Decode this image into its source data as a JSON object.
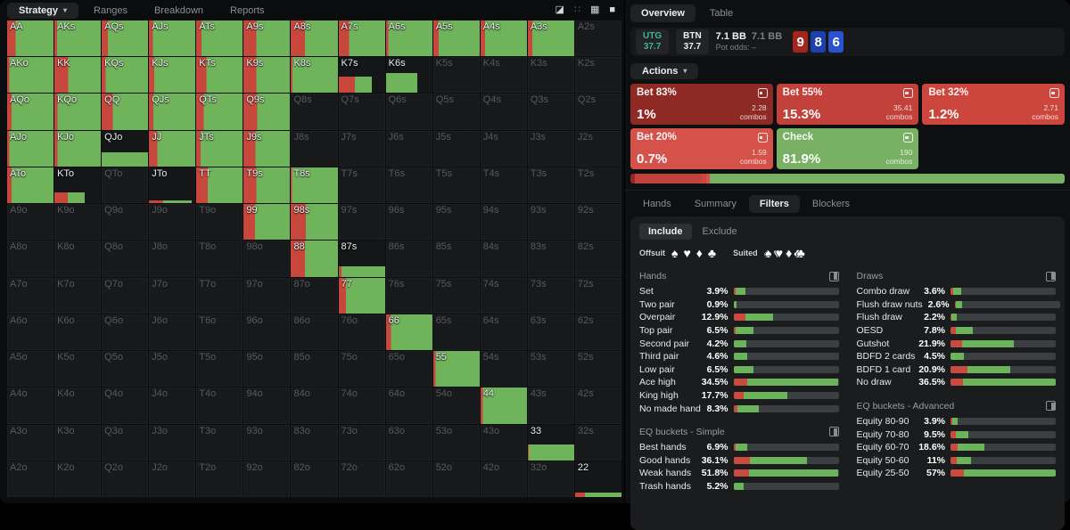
{
  "colors": {
    "grid_green": "#6fb35b",
    "grid_red": "#c8473d",
    "bar_red": "#c94b40",
    "bar_green": "#6cb45c",
    "bar_track": "#3b3f42"
  },
  "menubar": {
    "items": [
      {
        "label": "Strategy",
        "active": true,
        "caret": "▾"
      },
      {
        "label": "Ranges",
        "active": false
      },
      {
        "label": "Breakdown",
        "active": false
      },
      {
        "label": "Reports",
        "active": false
      }
    ],
    "icons": [
      {
        "glyph": "◪",
        "name": "contrast-square-icon",
        "dim": false
      },
      {
        "glyph": "∷",
        "name": "dots-grid-icon",
        "dim": true
      },
      {
        "glyph": "▦",
        "name": "grid-view-icon",
        "dim": false
      },
      {
        "glyph": "■",
        "name": "solid-square-icon",
        "dim": false
      }
    ]
  },
  "header": {
    "tabs": [
      {
        "label": "Overview",
        "active": true
      },
      {
        "label": "Table",
        "active": false
      }
    ]
  },
  "info": {
    "utg": {
      "label": "UTG",
      "value": "37.7"
    },
    "btn": {
      "label": "BTN",
      "value": "37.7"
    },
    "pot_main": "7.1 BB",
    "pot_alt": "7.1 BB",
    "pot_odds_label": "Pot odds:",
    "pot_odds_value": "–",
    "board": [
      {
        "rank": "9",
        "color": "#a3251c",
        "name": "board-card-9"
      },
      {
        "rank": "8",
        "color": "#1e3fae",
        "name": "board-card-8"
      },
      {
        "rank": "6",
        "color": "#2a52cf",
        "name": "board-card-6"
      }
    ]
  },
  "actions": {
    "label": "Actions",
    "caret": "▾",
    "combos_word": "combos",
    "buttons": [
      {
        "label": "Bet 83%",
        "pct": "1%",
        "combos": "2.28",
        "color": "#8e2a23"
      },
      {
        "label": "Bet 55%",
        "pct": "15.3%",
        "combos": "35.41",
        "color": "#c2413a"
      },
      {
        "label": "Bet 32%",
        "pct": "1.2%",
        "combos": "2.71",
        "color": "#cd463d"
      },
      {
        "label": "Bet 20%",
        "pct": "0.7%",
        "combos": "1.59",
        "color": "#d5524a"
      },
      {
        "label": "Check",
        "pct": "81.9%",
        "combos": "190",
        "color": "#78b163"
      }
    ],
    "strategy_bar": [
      {
        "pct": 1,
        "color": "#8e2a23"
      },
      {
        "pct": 15.3,
        "color": "#c2413a"
      },
      {
        "pct": 1.2,
        "color": "#cd463d"
      },
      {
        "pct": 0.7,
        "color": "#d5524a"
      },
      {
        "pct": 81.9,
        "color": "#78b163"
      }
    ]
  },
  "sub_tabs": [
    {
      "label": "Hands",
      "active": false
    },
    {
      "label": "Summary",
      "active": false
    },
    {
      "label": "Filters",
      "active": true
    },
    {
      "label": "Blockers",
      "active": false
    }
  ],
  "filters": {
    "include": "Include",
    "exclude": "Exclude",
    "offsuit_label": "Offsuit",
    "suited_label": "Suited",
    "suits": [
      {
        "glyph": "♠",
        "name": "spade"
      },
      {
        "glyph": "♥",
        "name": "heart"
      },
      {
        "glyph": "♦",
        "name": "diamond"
      },
      {
        "glyph": "♣",
        "name": "club"
      }
    ]
  },
  "stats": {
    "left": [
      {
        "title": "Hands",
        "max": 34.5,
        "rows": [
          {
            "label": "Set",
            "value": "3.9%",
            "v": 3.9,
            "rf": 0.18
          },
          {
            "label": "Two pair",
            "value": "0.9%",
            "v": 0.9,
            "rf": 0
          },
          {
            "label": "Overpair",
            "value": "12.9%",
            "v": 12.9,
            "rf": 0.3
          },
          {
            "label": "Top pair",
            "value": "6.5%",
            "v": 6.5,
            "rf": 0.12
          },
          {
            "label": "Second pair",
            "value": "4.2%",
            "v": 4.2,
            "rf": 0.04
          },
          {
            "label": "Third pair",
            "value": "4.6%",
            "v": 4.6,
            "rf": 0
          },
          {
            "label": "Low pair",
            "value": "6.5%",
            "v": 6.5,
            "rf": 0
          },
          {
            "label": "Ace high",
            "value": "34.5%",
            "v": 34.5,
            "rf": 0.13
          },
          {
            "label": "King high",
            "value": "17.7%",
            "v": 17.7,
            "rf": 0.19
          },
          {
            "label": "No made hand",
            "value": "8.3%",
            "v": 8.3,
            "rf": 0.15
          }
        ]
      },
      {
        "title": "EQ buckets - Simple",
        "max": 51.8,
        "rows": [
          {
            "label": "Best hands",
            "value": "6.9%",
            "v": 6.9,
            "rf": 0.15
          },
          {
            "label": "Good hands",
            "value": "36.1%",
            "v": 36.1,
            "rf": 0.23
          },
          {
            "label": "Weak hands",
            "value": "51.8%",
            "v": 51.8,
            "rf": 0.15
          },
          {
            "label": "Trash hands",
            "value": "5.2%",
            "v": 5.2,
            "rf": 0
          }
        ]
      }
    ],
    "right": [
      {
        "title": "Draws",
        "max": 36.5,
        "rows": [
          {
            "label": "Combo draw",
            "value": "3.6%",
            "v": 3.6,
            "rf": 0.25
          },
          {
            "label": "Flush draw nuts",
            "value": "2.6%",
            "v": 2.6,
            "rf": 0.12
          },
          {
            "label": "Flush draw",
            "value": "2.2%",
            "v": 2.2,
            "rf": 0.15
          },
          {
            "label": "OESD",
            "value": "7.8%",
            "v": 7.8,
            "rf": 0.22
          },
          {
            "label": "Gutshot",
            "value": "21.9%",
            "v": 21.9,
            "rf": 0.18
          },
          {
            "label": "BDFD 2 cards",
            "value": "4.5%",
            "v": 4.5,
            "rf": 0
          },
          {
            "label": "BDFD 1 card",
            "value": "20.9%",
            "v": 20.9,
            "rf": 0.28
          },
          {
            "label": "No draw",
            "value": "36.5%",
            "v": 36.5,
            "rf": 0.12
          }
        ]
      },
      {
        "title": "EQ buckets - Advanced",
        "max": 57,
        "rows": [
          {
            "label": "Equity 80-90",
            "value": "3.9%",
            "v": 3.9,
            "rf": 0.2
          },
          {
            "label": "Equity 70-80",
            "value": "9.5%",
            "v": 9.5,
            "rf": 0.3
          },
          {
            "label": "Equity 60-70",
            "value": "18.6%",
            "v": 18.6,
            "rf": 0.2
          },
          {
            "label": "Equity 50-60",
            "value": "11%",
            "v": 11,
            "rf": 0.3
          },
          {
            "label": "Equity 25-50",
            "value": "57%",
            "v": 57,
            "rf": 0.13
          }
        ]
      }
    ]
  },
  "grid": {
    "rows": [
      [
        {
          "l": "AA",
          "t": "f",
          "r": 0.18
        },
        {
          "l": "AKs",
          "t": "f",
          "r": 0.06
        },
        {
          "l": "AQs",
          "t": "f",
          "r": 0.13
        },
        {
          "l": "AJs",
          "t": "f",
          "r": 0.09
        },
        {
          "l": "ATs",
          "t": "f",
          "r": 0.12
        },
        {
          "l": "A9s",
          "t": "f",
          "r": 0.28
        },
        {
          "l": "A8s",
          "t": "f",
          "r": 0.3
        },
        {
          "l": "A7s",
          "t": "f",
          "r": 0.22
        },
        {
          "l": "A6s",
          "t": "f",
          "r": 0.05
        },
        {
          "l": "A5s",
          "t": "f",
          "r": 0.12
        },
        {
          "l": "A4s",
          "t": "f",
          "r": 0.1
        },
        {
          "l": "A3s",
          "t": "f",
          "r": 0.1
        },
        {
          "l": "A2s",
          "t": "o"
        }
      ],
      [
        {
          "l": "AKo",
          "t": "f",
          "r": 0.05
        },
        {
          "l": "KK",
          "t": "f",
          "r": 0.3
        },
        {
          "l": "KQs",
          "t": "f",
          "r": 0.09
        },
        {
          "l": "KJs",
          "t": "f",
          "r": 0.12
        },
        {
          "l": "KTs",
          "t": "f",
          "r": 0.22
        },
        {
          "l": "K9s",
          "t": "f",
          "r": 0.28
        },
        {
          "l": "K8s",
          "t": "f",
          "r": 0.04
        },
        {
          "l": "K7s",
          "t": "p",
          "h": 0.45,
          "rw": 0.36,
          "gw": 0.36
        },
        {
          "l": "K6s",
          "t": "p",
          "h": 0.55,
          "rw": 0,
          "gw": 0.67
        },
        {
          "l": "K5s",
          "t": "o"
        },
        {
          "l": "K4s",
          "t": "o"
        },
        {
          "l": "K3s",
          "t": "o"
        },
        {
          "l": "K2s",
          "t": "o"
        }
      ],
      [
        {
          "l": "AQo",
          "t": "f",
          "r": 0.1
        },
        {
          "l": "KQo",
          "t": "f",
          "r": 0.07
        },
        {
          "l": "QQ",
          "t": "f",
          "r": 0.24
        },
        {
          "l": "QJs",
          "t": "f",
          "r": 0.1
        },
        {
          "l": "QTs",
          "t": "f",
          "r": 0.16
        },
        {
          "l": "Q9s",
          "t": "f",
          "r": 0.3
        },
        {
          "l": "Q8s",
          "t": "o"
        },
        {
          "l": "Q7s",
          "t": "o"
        },
        {
          "l": "Q6s",
          "t": "o"
        },
        {
          "l": "Q5s",
          "t": "o"
        },
        {
          "l": "Q4s",
          "t": "o"
        },
        {
          "l": "Q3s",
          "t": "o"
        },
        {
          "l": "Q2s",
          "t": "o"
        }
      ],
      [
        {
          "l": "AJo",
          "t": "f",
          "r": 0.05
        },
        {
          "l": "KJo",
          "t": "f",
          "r": 0.07
        },
        {
          "l": "QJo",
          "t": "p",
          "h": 0.4,
          "rw": 0,
          "gw": 1
        },
        {
          "l": "JJ",
          "t": "f",
          "r": 0.18
        },
        {
          "l": "JTs",
          "t": "f",
          "r": 0.1
        },
        {
          "l": "J9s",
          "t": "f",
          "r": 0.26
        },
        {
          "l": "J8s",
          "t": "o"
        },
        {
          "l": "J7s",
          "t": "o"
        },
        {
          "l": "J6s",
          "t": "o"
        },
        {
          "l": "J5s",
          "t": "o"
        },
        {
          "l": "J4s",
          "t": "o"
        },
        {
          "l": "J3s",
          "t": "o"
        },
        {
          "l": "J2s",
          "t": "o"
        }
      ],
      [
        {
          "l": "ATo",
          "t": "f",
          "r": 0.1
        },
        {
          "l": "KTo",
          "t": "p",
          "h": 0.3,
          "rw": 0.28,
          "gw": 0.38
        },
        {
          "l": "QTo",
          "t": "o"
        },
        {
          "l": "JTo",
          "t": "p",
          "h": 0.09,
          "rw": 0.3,
          "gw": 0.62
        },
        {
          "l": "TT",
          "t": "f",
          "r": 0.25
        },
        {
          "l": "T9s",
          "t": "f",
          "r": 0.28
        },
        {
          "l": "T8s",
          "t": "f",
          "r": 0.03
        },
        {
          "l": "T7s",
          "t": "o"
        },
        {
          "l": "T6s",
          "t": "o"
        },
        {
          "l": "T5s",
          "t": "o"
        },
        {
          "l": "T4s",
          "t": "o"
        },
        {
          "l": "T3s",
          "t": "o"
        },
        {
          "l": "T2s",
          "t": "o"
        }
      ],
      [
        {
          "l": "A9o",
          "t": "o"
        },
        {
          "l": "K9o",
          "t": "o"
        },
        {
          "l": "Q9o",
          "t": "o"
        },
        {
          "l": "J9o",
          "t": "o"
        },
        {
          "l": "T9o",
          "t": "o"
        },
        {
          "l": "99",
          "t": "f",
          "r": 0.25
        },
        {
          "l": "98s",
          "t": "f",
          "r": 0.32
        },
        {
          "l": "97s",
          "t": "o"
        },
        {
          "l": "96s",
          "t": "o"
        },
        {
          "l": "95s",
          "t": "o"
        },
        {
          "l": "94s",
          "t": "o"
        },
        {
          "l": "93s",
          "t": "o"
        },
        {
          "l": "92s",
          "t": "o"
        }
      ],
      [
        {
          "l": "A8o",
          "t": "o"
        },
        {
          "l": "K8o",
          "t": "o"
        },
        {
          "l": "Q8o",
          "t": "o"
        },
        {
          "l": "J8o",
          "t": "o"
        },
        {
          "l": "T8o",
          "t": "o"
        },
        {
          "l": "98o",
          "t": "o"
        },
        {
          "l": "88",
          "t": "f",
          "r": 0.3
        },
        {
          "l": "87s",
          "t": "p",
          "h": 0.28,
          "rw": 0.06,
          "gw": 0.94
        },
        {
          "l": "86s",
          "t": "o"
        },
        {
          "l": "85s",
          "t": "o"
        },
        {
          "l": "84s",
          "t": "o"
        },
        {
          "l": "83s",
          "t": "o"
        },
        {
          "l": "82s",
          "t": "o"
        }
      ],
      [
        {
          "l": "A7o",
          "t": "o"
        },
        {
          "l": "K7o",
          "t": "o"
        },
        {
          "l": "Q7o",
          "t": "o"
        },
        {
          "l": "J7o",
          "t": "o"
        },
        {
          "l": "T7o",
          "t": "o"
        },
        {
          "l": "97o",
          "t": "o"
        },
        {
          "l": "87o",
          "t": "o"
        },
        {
          "l": "77",
          "t": "f",
          "r": 0.15
        },
        {
          "l": "76s",
          "t": "o"
        },
        {
          "l": "75s",
          "t": "o"
        },
        {
          "l": "74s",
          "t": "o"
        },
        {
          "l": "73s",
          "t": "o"
        },
        {
          "l": "72s",
          "t": "o"
        }
      ],
      [
        {
          "l": "A6o",
          "t": "o"
        },
        {
          "l": "K6o",
          "t": "o"
        },
        {
          "l": "Q6o",
          "t": "o"
        },
        {
          "l": "J6o",
          "t": "o"
        },
        {
          "l": "T6o",
          "t": "o"
        },
        {
          "l": "96o",
          "t": "o"
        },
        {
          "l": "86o",
          "t": "o"
        },
        {
          "l": "76o",
          "t": "o"
        },
        {
          "l": "66",
          "t": "f",
          "r": 0.11
        },
        {
          "l": "65s",
          "t": "o"
        },
        {
          "l": "64s",
          "t": "o"
        },
        {
          "l": "63s",
          "t": "o"
        },
        {
          "l": "62s",
          "t": "o"
        }
      ],
      [
        {
          "l": "A5o",
          "t": "o"
        },
        {
          "l": "K5o",
          "t": "o"
        },
        {
          "l": "Q5o",
          "t": "o"
        },
        {
          "l": "J5o",
          "t": "o"
        },
        {
          "l": "T5o",
          "t": "o"
        },
        {
          "l": "95o",
          "t": "o"
        },
        {
          "l": "85o",
          "t": "o"
        },
        {
          "l": "75o",
          "t": "o"
        },
        {
          "l": "65o",
          "t": "o"
        },
        {
          "l": "55",
          "t": "f",
          "r": 0.05
        },
        {
          "l": "54s",
          "t": "o"
        },
        {
          "l": "53s",
          "t": "o"
        },
        {
          "l": "52s",
          "t": "o"
        }
      ],
      [
        {
          "l": "A4o",
          "t": "o"
        },
        {
          "l": "K4o",
          "t": "o"
        },
        {
          "l": "Q4o",
          "t": "o"
        },
        {
          "l": "J4o",
          "t": "o"
        },
        {
          "l": "T4o",
          "t": "o"
        },
        {
          "l": "94o",
          "t": "o"
        },
        {
          "l": "84o",
          "t": "o"
        },
        {
          "l": "74o",
          "t": "o"
        },
        {
          "l": "64o",
          "t": "o"
        },
        {
          "l": "54o",
          "t": "o"
        },
        {
          "l": "44",
          "t": "f",
          "r": 0.05
        },
        {
          "l": "43s",
          "t": "o"
        },
        {
          "l": "42s",
          "t": "o"
        }
      ],
      [
        {
          "l": "A3o",
          "t": "o"
        },
        {
          "l": "K3o",
          "t": "o"
        },
        {
          "l": "Q3o",
          "t": "o"
        },
        {
          "l": "J3o",
          "t": "o"
        },
        {
          "l": "T3o",
          "t": "o"
        },
        {
          "l": "93o",
          "t": "o"
        },
        {
          "l": "83o",
          "t": "o"
        },
        {
          "l": "73o",
          "t": "o"
        },
        {
          "l": "63o",
          "t": "o"
        },
        {
          "l": "53o",
          "t": "o"
        },
        {
          "l": "43o",
          "t": "o"
        },
        {
          "l": "33",
          "t": "p",
          "h": 0.45,
          "rw": 0.03,
          "gw": 0.97
        },
        {
          "l": "32s",
          "t": "o"
        }
      ],
      [
        {
          "l": "A2o",
          "t": "o"
        },
        {
          "l": "K2o",
          "t": "o"
        },
        {
          "l": "Q2o",
          "t": "o"
        },
        {
          "l": "J2o",
          "t": "o"
        },
        {
          "l": "T2o",
          "t": "o"
        },
        {
          "l": "92o",
          "t": "o"
        },
        {
          "l": "82o",
          "t": "o"
        },
        {
          "l": "72o",
          "t": "o"
        },
        {
          "l": "62o",
          "t": "o"
        },
        {
          "l": "52o",
          "t": "o"
        },
        {
          "l": "42o",
          "t": "o"
        },
        {
          "l": "32o",
          "t": "o"
        },
        {
          "l": "22",
          "t": "p",
          "h": 0.13,
          "rw": 0.22,
          "gw": 0.78
        }
      ]
    ]
  }
}
